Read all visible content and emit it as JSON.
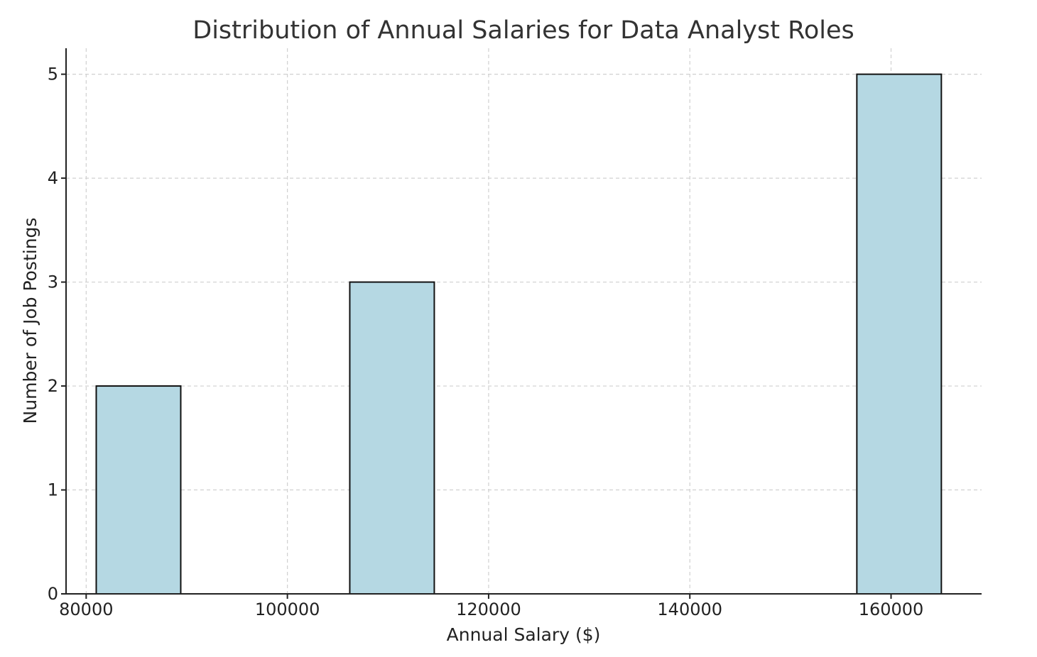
{
  "chart_data": {
    "type": "bar",
    "title": "Distribution of Annual Salaries for Data Analyst Roles",
    "xlabel": "Annual Salary ($)",
    "ylabel": "Number of Job Postings",
    "xlim": [
      78000,
      169000
    ],
    "ylim": [
      0,
      5.25
    ],
    "x_ticks": [
      80000,
      100000,
      120000,
      140000,
      160000
    ],
    "y_ticks": [
      0,
      1,
      2,
      3,
      4,
      5
    ],
    "bars": [
      {
        "x_start": 81000,
        "x_end": 89400,
        "value": 2
      },
      {
        "x_start": 106200,
        "x_end": 114600,
        "value": 3
      },
      {
        "x_start": 156600,
        "x_end": 165000,
        "value": 5
      }
    ],
    "grid": true,
    "bar_color": "#b5d8e3",
    "bar_edge_color": "#111111"
  }
}
